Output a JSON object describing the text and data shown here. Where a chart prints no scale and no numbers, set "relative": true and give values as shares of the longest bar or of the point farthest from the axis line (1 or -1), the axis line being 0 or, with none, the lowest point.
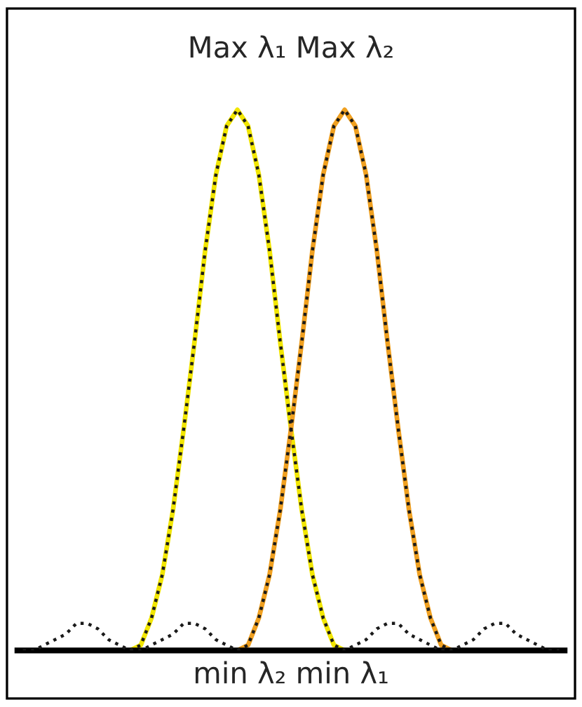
{
  "chart_data": {
    "type": "line",
    "relative": true,
    "grid": false,
    "legend": false,
    "marker": "none",
    "categories": [
      null,
      null,
      null,
      null,
      null,
      null,
      null,
      null,
      null,
      null,
      null,
      null,
      null,
      null,
      null,
      null,
      null,
      null,
      null,
      null,
      null,
      null,
      null,
      null,
      null,
      null,
      null,
      null,
      null,
      null,
      null,
      null,
      null,
      null,
      null,
      null,
      null,
      null,
      null,
      null,
      null,
      null,
      null,
      null,
      null,
      null,
      null,
      null,
      null,
      null,
      null
    ],
    "series": [
      {
        "color": "#1a1a1a",
        "line_style": "dotted",
        "values": [
          0,
          0,
          0.01,
          0.02,
          0.03,
          0.05,
          0.05,
          0.04,
          0.02,
          0.01,
          0,
          0.01,
          0.06,
          0.14,
          0.26,
          0.41,
          0.57,
          0.74,
          0.88,
          0.97,
          1,
          0.97,
          0.88,
          0.74,
          0.57,
          0.41,
          0.26,
          0.14,
          0.06,
          0.01,
          0,
          0.01,
          0.02,
          0.04,
          0.05,
          0.05,
          0.03,
          0.02,
          0.01,
          0,
          0,
          null,
          null,
          null,
          null,
          null,
          null,
          null,
          null,
          null,
          null
        ]
      },
      {
        "color": "#1a1a1a",
        "line_style": "dotted",
        "values": [
          null,
          null,
          null,
          null,
          null,
          null,
          null,
          null,
          null,
          null,
          0,
          0,
          0.01,
          0.02,
          0.03,
          0.05,
          0.05,
          0.04,
          0.02,
          0.01,
          0,
          0.01,
          0.06,
          0.14,
          0.26,
          0.41,
          0.57,
          0.74,
          0.88,
          0.97,
          1,
          0.97,
          0.88,
          0.74,
          0.57,
          0.41,
          0.26,
          0.14,
          0.06,
          0.01,
          0,
          0.01,
          0.02,
          0.04,
          0.05,
          0.05,
          0.03,
          0.02,
          0.01,
          0,
          0
        ]
      },
      {
        "color": "#f2e600",
        "line_style": "solid",
        "values": [
          null,
          null,
          null,
          null,
          null,
          null,
          null,
          null,
          null,
          null,
          0,
          0.01,
          0.06,
          0.14,
          0.26,
          0.41,
          0.57,
          0.74,
          0.88,
          0.97,
          1,
          0.97,
          0.88,
          0.74,
          0.57,
          0.41,
          0.26,
          0.14,
          0.06,
          0.01,
          0,
          null,
          null,
          null,
          null,
          null,
          null,
          null,
          null,
          null,
          null,
          null,
          null,
          null,
          null,
          null,
          null,
          null,
          null,
          null,
          null
        ]
      },
      {
        "color": "#f0a020",
        "line_style": "solid",
        "values": [
          null,
          null,
          null,
          null,
          null,
          null,
          null,
          null,
          null,
          null,
          null,
          null,
          null,
          null,
          null,
          null,
          null,
          null,
          null,
          null,
          0,
          0.01,
          0.06,
          0.14,
          0.26,
          0.41,
          0.57,
          0.74,
          0.88,
          0.97,
          1,
          0.97,
          0.88,
          0.74,
          0.57,
          0.41,
          0.26,
          0.14,
          0.06,
          0.01,
          0,
          null,
          null,
          null,
          null,
          null,
          null,
          null,
          null,
          null,
          null
        ]
      }
    ],
    "annotations": [
      "Max λ₁",
      "Max λ₂",
      "min λ₂",
      "min λ₁"
    ]
  }
}
